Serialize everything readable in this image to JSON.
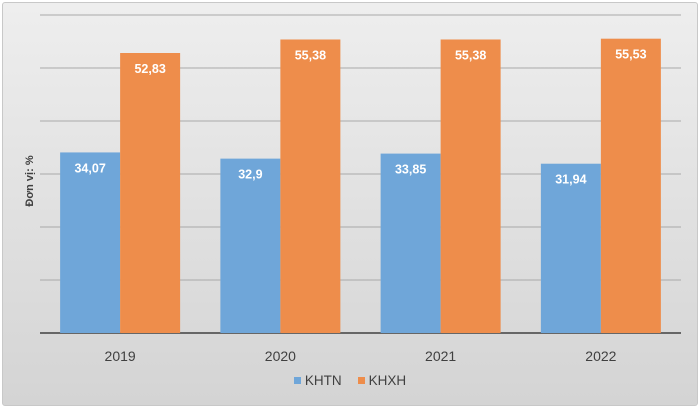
{
  "chart_data": {
    "type": "bar",
    "categories": [
      "2019",
      "2020",
      "2021",
      "2022"
    ],
    "series": [
      {
        "name": "KHTN",
        "values": [
          34.07,
          32.9,
          33.85,
          31.94
        ],
        "labels": [
          "34,07",
          "32,9",
          "33,85",
          "31,94"
        ],
        "color": "#6fa6d9"
      },
      {
        "name": "KHXH",
        "values": [
          52.83,
          55.38,
          55.38,
          55.53
        ],
        "labels": [
          "52,83",
          "55,38",
          "55,38",
          "55,53"
        ],
        "color": "#ee8d4b"
      }
    ],
    "ylabel": "Đơn vị: %",
    "ylim": [
      0,
      60
    ],
    "y_gridline_step": 10,
    "y_tick_labels_shown": false,
    "grid": true,
    "legend_position": "bottom"
  }
}
